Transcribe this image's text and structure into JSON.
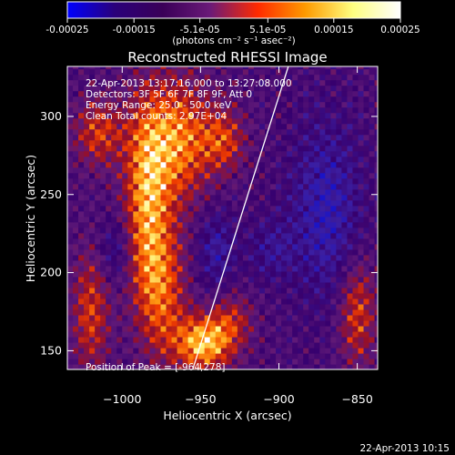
{
  "chart_data": {
    "type": "heatmap",
    "title": "Reconstructed RHESSI Image",
    "xlabel": "Heliocentric X (arcsec)",
    "ylabel": "Heliocentric Y (arcsec)",
    "xlim": [
      -1035,
      -837
    ],
    "ylim": [
      138,
      332
    ],
    "x_ticks": [
      -1000,
      -950,
      -900,
      -850
    ],
    "x_tick_labels": [
      "−1000",
      "−950",
      "−900",
      "−850"
    ],
    "y_ticks": [
      150,
      200,
      250,
      300
    ],
    "y_tick_labels": [
      "150",
      "200",
      "250",
      "300"
    ],
    "colorbar": {
      "min": -0.00025,
      "max": 0.00025,
      "ticks": [
        -0.00025,
        -0.00015,
        -5.1e-05,
        5.1e-05,
        0.00015,
        0.00025
      ],
      "tick_labels": [
        "-0.00025",
        "-0.00015",
        "-5.1e-05",
        "5.1e-05",
        "0.00015",
        "0.00025"
      ],
      "unit_label": "(photons cm⁻² s⁻¹ asec⁻²)",
      "colors": [
        "#0000ff",
        "#2a007a",
        "#3a0058",
        "#6a1a78",
        "#ff2a00",
        "#ff9a00",
        "#ffff80",
        "#ffffff"
      ]
    },
    "annotations": [
      "22-Apr-2013 13:17:16.000 to 13:27:08.000",
      "Detectors: 3F 5F 6F 7F 8F 9F, Att 0",
      "Energy Range: 25.0 - 50.0 keV",
      "Clean     Total counts: 2.97E+04"
    ],
    "peak_label": "Position of Peak = [-964,278]",
    "limb_line": {
      "x": [
        -955,
        -894
      ],
      "y": [
        138,
        332
      ]
    },
    "grid": false
  },
  "footer": {
    "timestamp": "22-Apr-2013 10:15"
  }
}
